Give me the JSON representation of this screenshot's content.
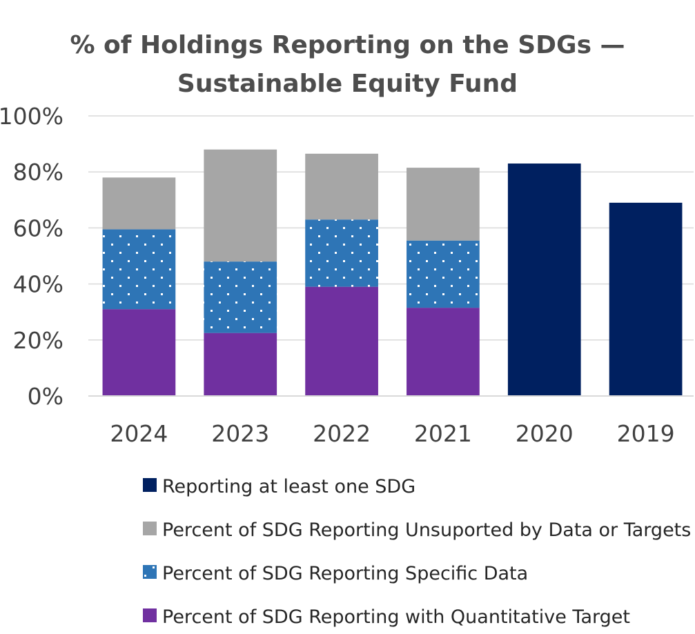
{
  "chart_data": {
    "type": "bar",
    "stacked": true,
    "title": "% of Holdings Reporting on the SDGs — Sustainable Equity Fund",
    "categories": [
      "2024",
      "2023",
      "2022",
      "2021",
      "2020",
      "2019"
    ],
    "xlabel": "",
    "ylabel": "",
    "ylim": [
      0,
      100
    ],
    "yticks": [
      "0%",
      "20%",
      "40%",
      "60%",
      "80%",
      "100%"
    ],
    "grid": true,
    "legend_position": "bottom",
    "series": [
      {
        "name": "Percent of SDG Reporting with Quantitative Target",
        "color": "#7030a0",
        "pattern": "solid",
        "values": [
          31,
          22.5,
          39,
          31.5,
          null,
          null
        ]
      },
      {
        "name": "Percent of SDG Reporting Specific Data",
        "color": "#2e75b6",
        "pattern": "dotted",
        "values": [
          28.5,
          25.5,
          24,
          24,
          null,
          null
        ]
      },
      {
        "name": "Percent of SDG Reporting Unsuported by Data or Targets",
        "color": "#a6a6a6",
        "pattern": "solid",
        "values": [
          18.5,
          40,
          23.5,
          26,
          null,
          null
        ]
      },
      {
        "name": "Reporting at least one SDG",
        "color": "#002060",
        "pattern": "solid",
        "values": [
          null,
          null,
          null,
          null,
          83,
          69
        ]
      }
    ],
    "legend_order": [
      3,
      2,
      1,
      0
    ]
  }
}
